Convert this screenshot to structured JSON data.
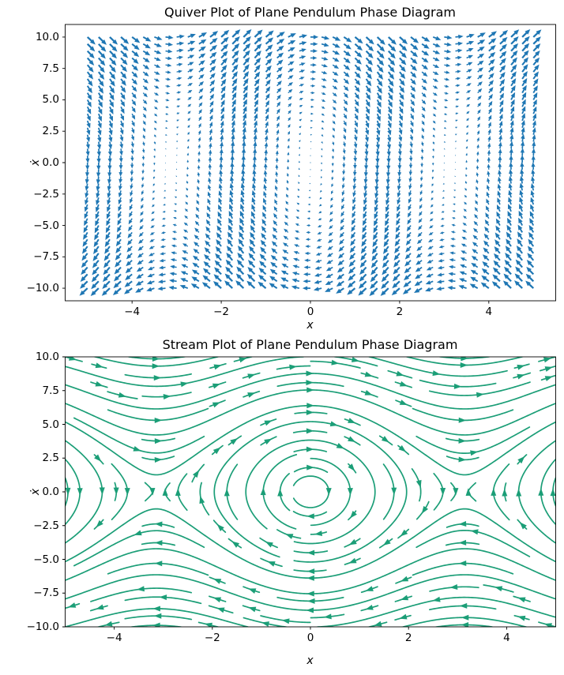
{
  "chart_data": [
    {
      "type": "quiver",
      "title": "Quiver Plot of Plane Pendulum Phase Diagram",
      "xlabel": "x",
      "ylabel": "ẋ",
      "color": "#1f77b4",
      "field": {
        "u": "y",
        "v": "-9.8*sin(x)",
        "description": "plane pendulum: dx/dt = ẋ, dẋ/dt = -(g/L)·sin(x), g/L = 9.8"
      },
      "grid": {
        "x_min": -5,
        "x_max": 5,
        "x_count": 41,
        "y_min": -10,
        "y_max": 10,
        "y_count": 37
      },
      "xlim": [
        -5.5,
        5.5
      ],
      "ylim": [
        -11,
        11
      ],
      "xticks": {
        "values": [
          -4,
          -2,
          0,
          2,
          4
        ],
        "labels": [
          "−4",
          "−2",
          "0",
          "2",
          "4"
        ]
      },
      "yticks": {
        "values": [
          10,
          7.5,
          5,
          2.5,
          0,
          -2.5,
          -5,
          -7.5,
          -10
        ],
        "labels": [
          "10.0",
          "7.5",
          "5.0",
          "2.5",
          "0.0",
          "−2.5",
          "−5.0",
          "−7.5",
          "−10.0"
        ]
      }
    },
    {
      "type": "streamplot",
      "title": "Stream Plot of Plane Pendulum Phase Diagram",
      "xlabel": "x",
      "ylabel": "ẋ",
      "color": "#1b9e77",
      "field": {
        "u": "y",
        "v": "-9.8*sin(x)",
        "description": "plane pendulum: dx/dt = ẋ, dẋ/dt = -(g/L)·sin(x), g/L = 9.8"
      },
      "domain": {
        "x_min": -5,
        "x_max": 5,
        "y_min": -10,
        "y_max": 10
      },
      "density": 1,
      "xlim": [
        -5,
        5
      ],
      "ylim": [
        -10,
        10
      ],
      "xticks": {
        "values": [
          -4,
          -2,
          0,
          2,
          4
        ],
        "labels": [
          "−4",
          "−2",
          "0",
          "2",
          "4"
        ]
      },
      "yticks": {
        "values": [
          10,
          7.5,
          5,
          2.5,
          0,
          -2.5,
          -5,
          -7.5,
          -10
        ],
        "labels": [
          "10.0",
          "7.5",
          "5.0",
          "2.5",
          "0.0",
          "−2.5",
          "−5.0",
          "−7.5",
          "−10.0"
        ]
      }
    }
  ]
}
